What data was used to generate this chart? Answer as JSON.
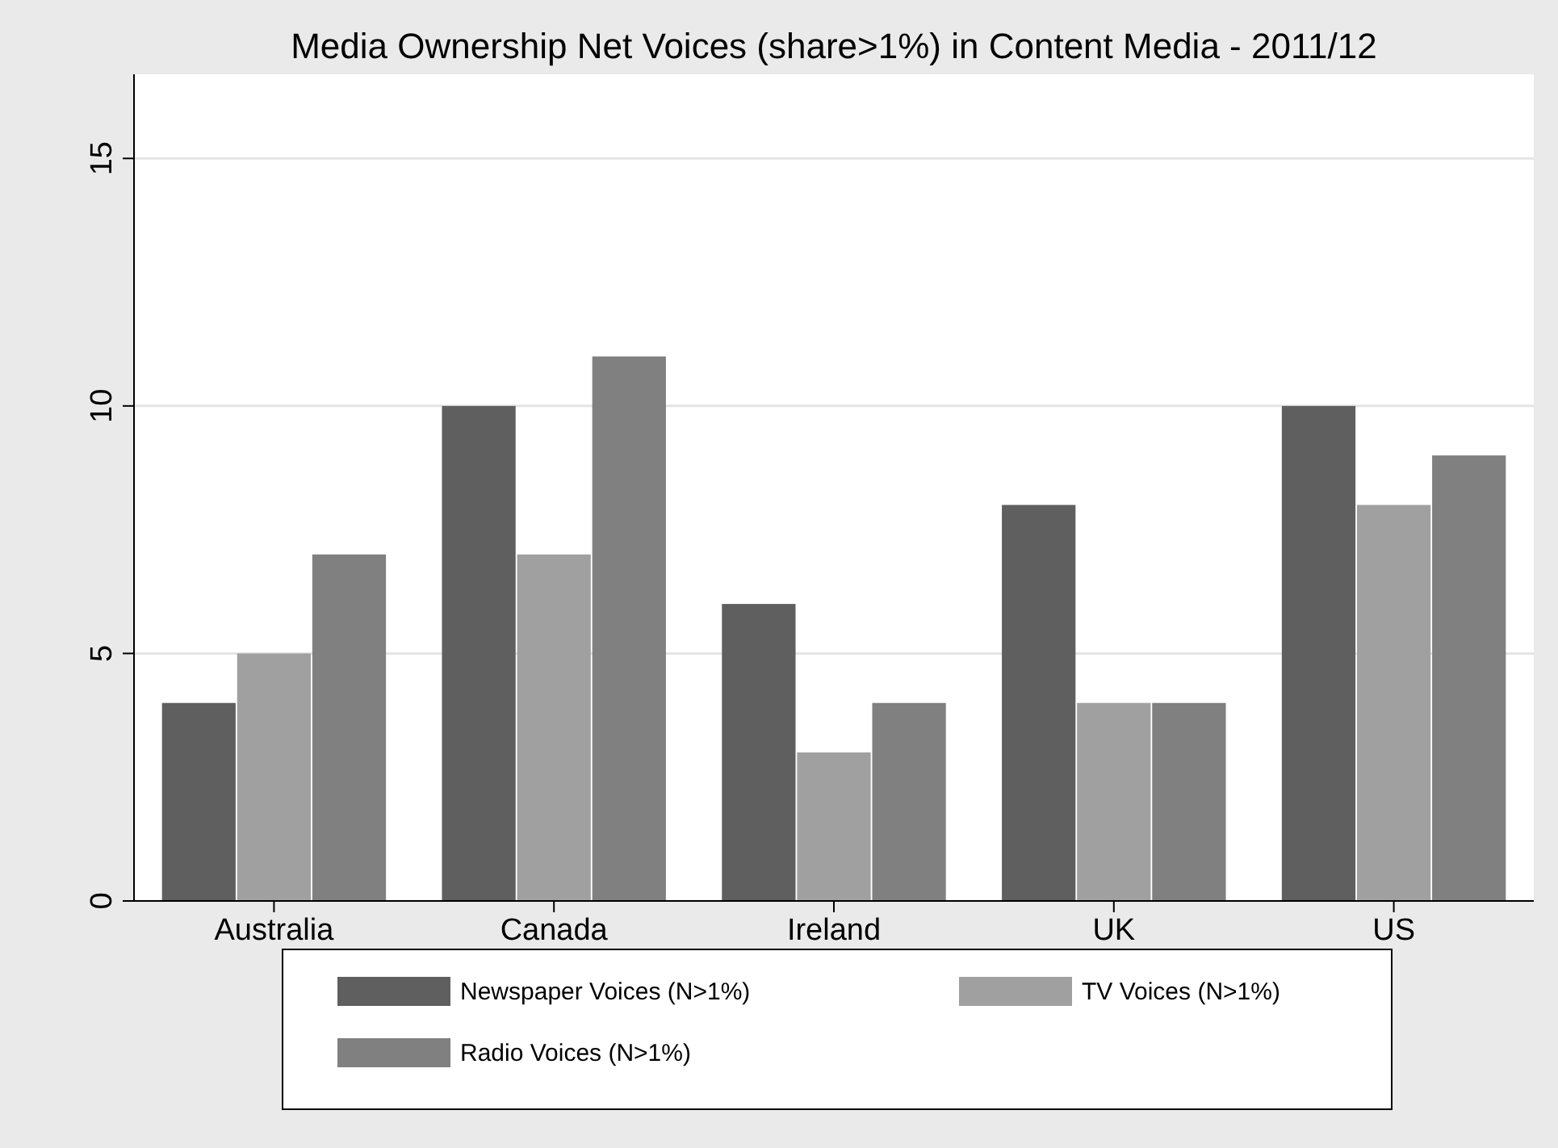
{
  "chart_data": {
    "type": "bar",
    "title": "Media Ownership Net Voices (share>1%) in Content Media - 2011/12",
    "categories": [
      "Australia",
      "Canada",
      "Ireland",
      "UK",
      "US"
    ],
    "series": [
      {
        "name": "Newspaper Voices (N>1%)",
        "color": "#5f5f5f",
        "values": [
          4,
          10,
          6,
          8,
          10
        ]
      },
      {
        "name": "TV Voices (N>1%)",
        "color": "#a0a0a0",
        "values": [
          5,
          7,
          3,
          4,
          8
        ]
      },
      {
        "name": "Radio Voices (N>1%)",
        "color": "#808080",
        "values": [
          7,
          11,
          4,
          4,
          9
        ]
      }
    ],
    "ylim": [
      0,
      16.7
    ],
    "yticks": [
      0,
      5,
      10,
      15
    ],
    "grid": "y",
    "legend": "bottom"
  }
}
